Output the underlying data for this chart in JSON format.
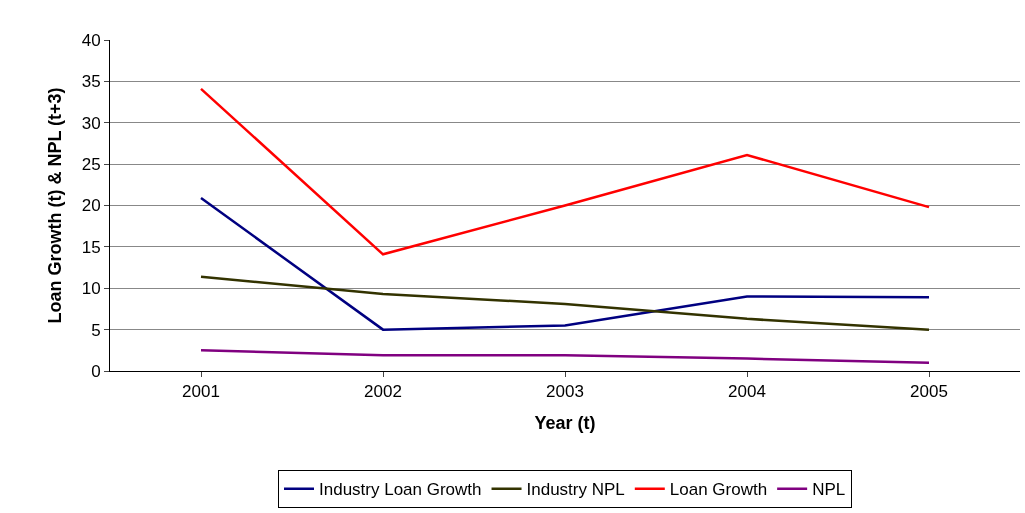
{
  "chart_data": {
    "type": "line",
    "xlabel": "Year (t)",
    "ylabel": "Loan Growth (t) & NPL (t+3)",
    "categories": [
      "2001",
      "2002",
      "2003",
      "2004",
      "2005"
    ],
    "series": [
      {
        "name": "Industry Loan Growth",
        "color": "#000080",
        "values": [
          20.9,
          5,
          5.5,
          9,
          8.9
        ]
      },
      {
        "name": "Industry NPL",
        "color": "#333300",
        "values": [
          11.4,
          9.3,
          8.1,
          6.3,
          5
        ]
      },
      {
        "name": "Loan Growth",
        "color": "#ff0000",
        "values": [
          34.1,
          14.1,
          20,
          26.1,
          19.8
        ]
      },
      {
        "name": "NPL",
        "color": "#800080",
        "values": [
          2.5,
          1.9,
          1.9,
          1.5,
          1
        ]
      }
    ],
    "ylim": [
      0,
      40
    ],
    "yticks": [
      0,
      5,
      10,
      15,
      20,
      25,
      30,
      35,
      40
    ],
    "grid": "y",
    "legend": "bottom",
    "marker": "none",
    "line_style": "solid"
  }
}
